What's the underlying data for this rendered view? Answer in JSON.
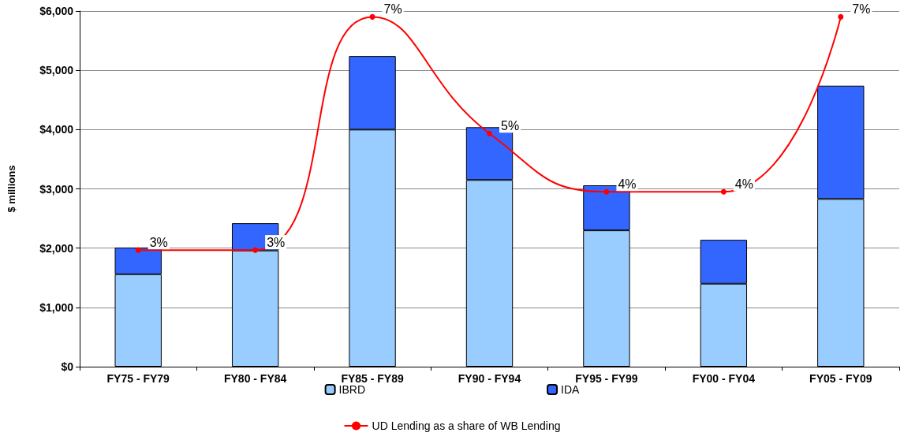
{
  "chart_data": {
    "type": "bar",
    "ylabel": "$ millions",
    "categories": [
      "FY75 - FY79",
      "FY80 - FY84",
      "FY85 - FY89",
      "FY90 - FY94",
      "FY95 - FY99",
      "FY00 - FY04",
      "FY05 - FY09"
    ],
    "stacked": true,
    "grid": "y",
    "legend": "bottom",
    "ylim": [
      0,
      6000
    ],
    "yticks": [
      {
        "value": 0,
        "label": "$0"
      },
      {
        "value": 1000,
        "label": "$1,000"
      },
      {
        "value": 2000,
        "label": "$2,000"
      },
      {
        "value": 3000,
        "label": "$3,000"
      },
      {
        "value": 4000,
        "label": "$4,000"
      },
      {
        "value": 5000,
        "label": "$5,000"
      },
      {
        "value": 6000,
        "label": "$6,000"
      }
    ],
    "y2lim": [
      1,
      7.1
    ],
    "tick_labels": "xy",
    "series": [
      {
        "name": "IBRD",
        "color": "#99ccff",
        "values": [
          1560,
          1960,
          4000,
          3150,
          2300,
          1400,
          2830
        ]
      },
      {
        "name": "IDA",
        "color": "#3366ff",
        "values": [
          450,
          460,
          1240,
          890,
          760,
          740,
          1910
        ]
      },
      {
        "name": "UD Lending as a share of WB Lending",
        "type": "line",
        "axis": "y2",
        "color": "#ff0000",
        "marker": "circle",
        "values": [
          3,
          3,
          7,
          5,
          4,
          4,
          7
        ],
        "value_labels": [
          "3%",
          "3%",
          "7%",
          "5%",
          "4%",
          "4%",
          "7%"
        ]
      }
    ]
  }
}
